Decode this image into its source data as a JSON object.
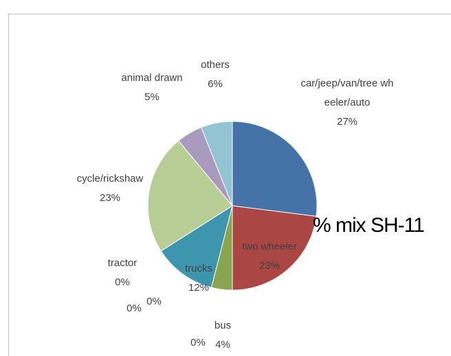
{
  "chart_data": {
    "type": "pie",
    "title": "% mix SH-11",
    "categories": [
      "car/jeep/van/tree wheeler/auto",
      "two wheeler",
      "bus",
      null,
      "trucks",
      null,
      null,
      "tractor",
      "cycle/rickshaw",
      "animal drawn",
      "others"
    ],
    "values": [
      27,
      23,
      4,
      0,
      12,
      0,
      0,
      0,
      23,
      5,
      6
    ],
    "value_labels": [
      "27%",
      "23%",
      "4%",
      "0%",
      "12%",
      "0%",
      "0%",
      "0%",
      "23%",
      "5%",
      "6%"
    ],
    "colors": [
      "#4572a7",
      "#aa4643",
      "#89a54e",
      "#80699b",
      "#3d96ae",
      "#db843d",
      "#92a8cd",
      "#a47d7c",
      "#b9cd96",
      "#a99bbd",
      "#93c4d3"
    ]
  }
}
